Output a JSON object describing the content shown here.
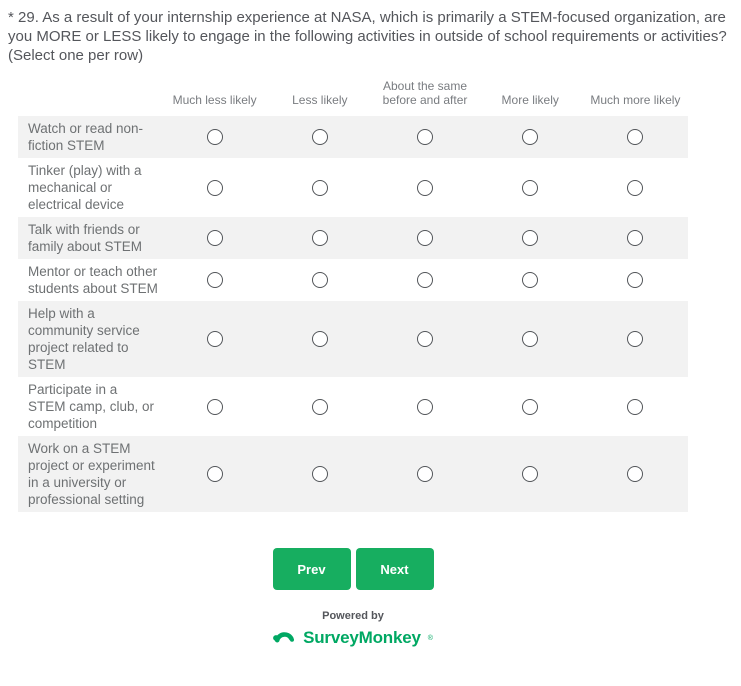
{
  "question": {
    "full_text": "* 29. As a result of your internship experience at NASA, which is primarily a STEM-focused organization, are you MORE or LESS likely to engage in the following activities in outside of school requirements or activities? (Select one per row)"
  },
  "matrix": {
    "columns": [
      "Much less likely",
      "Less likely",
      "About the same before and after",
      "More likely",
      "Much more likely"
    ],
    "rows": [
      {
        "label": "Watch or read non-fiction STEM",
        "selected": null
      },
      {
        "label": "Tinker (play) with a mechanical or electrical device",
        "selected": null
      },
      {
        "label": "Talk with friends or family about STEM",
        "selected": null
      },
      {
        "label": "Mentor or teach other students about STEM",
        "selected": null
      },
      {
        "label": "Help with a community service project related to STEM",
        "selected": null
      },
      {
        "label": "Participate in a STEM camp, club, or competition",
        "selected": null
      },
      {
        "label": "Work on a STEM project or experiment in a university or professional setting",
        "selected": null
      }
    ]
  },
  "buttons": {
    "prev": "Prev",
    "next": "Next"
  },
  "footer": {
    "powered_by": "Powered by",
    "brand": "SurveyMonkey",
    "trademark": "®"
  },
  "colors": {
    "accent_green": "#17ae60",
    "brand_green": "#00a863",
    "row_alt_bg": "#f2f2f2",
    "radio_border": "#53565a",
    "question_text": "#54565b",
    "label_text": "#6e7173"
  }
}
